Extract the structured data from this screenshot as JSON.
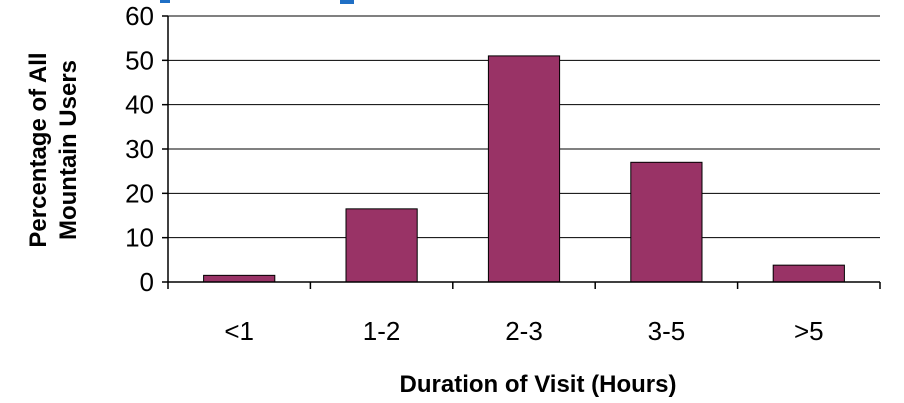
{
  "chart_data": {
    "type": "bar",
    "categories": [
      "<1",
      "1-2",
      "2-3",
      "3-5",
      ">5"
    ],
    "values": [
      1.5,
      16.5,
      51,
      27,
      3.8
    ],
    "xlabel": "Duration of Visit (Hours)",
    "ylabel": [
      "Percentage of All",
      "Mountain Users"
    ],
    "ylim": [
      0,
      60
    ],
    "yticks": [
      0,
      10,
      20,
      30,
      40,
      50,
      60
    ],
    "grid": true,
    "legend": "none",
    "colors": {
      "bar": "#993366",
      "title_fragment": "#1f6fc5"
    }
  }
}
